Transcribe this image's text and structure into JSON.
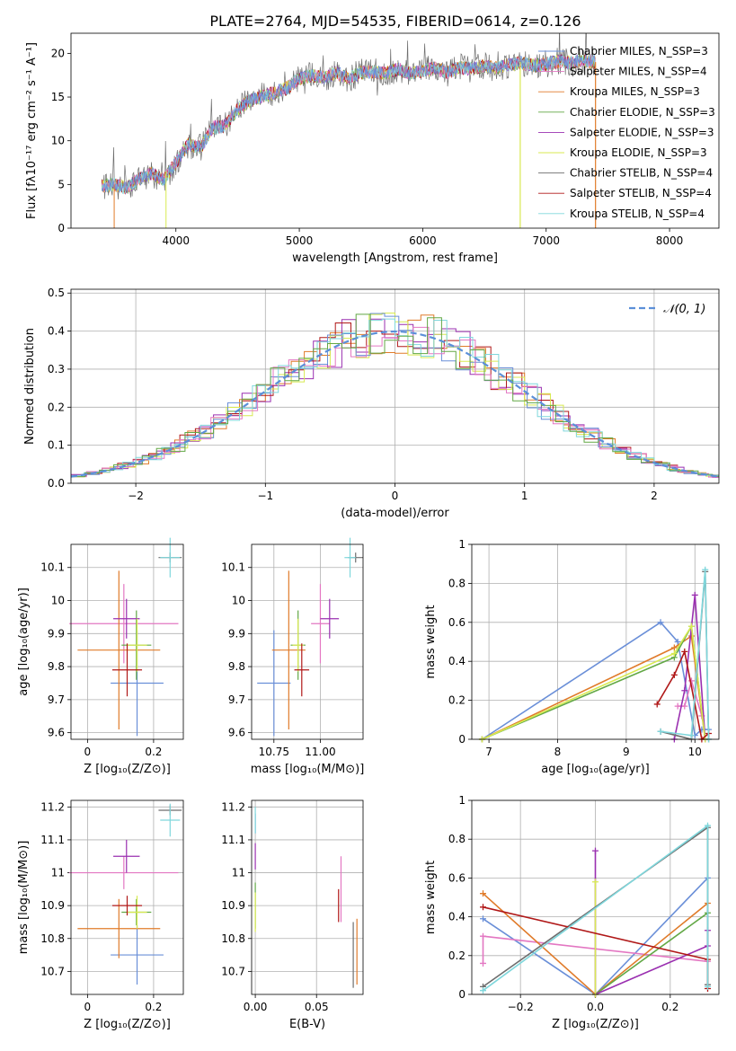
{
  "figure_title": "PLATE=2764, MJD=54535, FIBERID=0614, z=0.126",
  "colors": {
    "chabrier_miles": "#6a8fd8",
    "salpeter_miles": "#e377c2",
    "kroupa_miles": "#e07b2a",
    "chabrier_elodie": "#62a845",
    "salpeter_elodie": "#9a2fb0",
    "kroupa_elodie": "#d8ea52",
    "chabrier_stelib": "#6e6e6e",
    "salpeter_stelib": "#b01818",
    "kroupa_stelib": "#7fd7dc",
    "gaussian": "#5b8fd8",
    "grid": "#b0b0b0"
  },
  "chart_data": [
    {
      "id": "spectrum",
      "type": "line",
      "title": "PLATE=2764, MJD=54535, FIBERID=0614, z=0.126",
      "xlabel": "wavelength [Angstrom, rest frame]",
      "ylabel": "Flux [fλ10⁻¹⁷ erg cm⁻² s⁻¹ A⁻¹]",
      "xlim": [
        3150,
        8400
      ],
      "ylim": [
        0,
        22.3
      ],
      "xticks": [
        4000,
        5000,
        6000,
        7000,
        8000
      ],
      "yticks": [
        0,
        5,
        10,
        15,
        20
      ],
      "grid": false,
      "legend_position": "upper right",
      "legend": [
        "Chabrier MILES, N_SSP=3",
        "Salpeter MILES, N_SSP=4",
        "Kroupa MILES, N_SSP=3",
        "Chabrier ELODIE, N_SSP=3",
        "Salpeter ELODIE, N_SSP=3",
        "Kroupa ELODIE, N_SSP=3",
        "Chabrier STELIB, N_SSP=4",
        "Salpeter STELIB, N_SSP=4",
        "Kroupa STELIB, N_SSP=4"
      ],
      "continuum": {
        "x": [
          3400,
          3500,
          3600,
          3700,
          3800,
          3900,
          4000,
          4100,
          4200,
          4300,
          4400,
          4500,
          4600,
          4700,
          4800,
          4900,
          5000,
          5100,
          5200,
          5300,
          5400,
          5500,
          5600,
          5700,
          5800,
          5900,
          6000,
          6100,
          6200,
          6300,
          6400,
          6500,
          6600,
          6700,
          6800,
          6900,
          7000,
          7100,
          7200,
          7300,
          7400
        ],
        "y": [
          4.8,
          5.0,
          4.6,
          5.6,
          6.3,
          5.5,
          7.5,
          9.6,
          9.2,
          11.5,
          11.7,
          13.6,
          14.6,
          15.1,
          15.5,
          16.0,
          17.1,
          17.5,
          17.2,
          17.8,
          17.1,
          17.8,
          17.9,
          17.7,
          18.2,
          17.7,
          18.0,
          18.3,
          17.8,
          18.4,
          18.2,
          18.6,
          18.3,
          18.7,
          18.9,
          18.6,
          18.8,
          19.1,
          18.9,
          19.2,
          19.0
        ]
      }
    },
    {
      "id": "residuals",
      "type": "line",
      "xlabel": "(data-model)/error",
      "ylabel": "Normed distribution",
      "xlim": [
        -2.5,
        2.5
      ],
      "ylim": [
        0,
        0.51
      ],
      "xticks": [
        -2,
        -1,
        0,
        1,
        2
      ],
      "yticks": [
        0.0,
        0.1,
        0.2,
        0.3,
        0.4,
        0.5
      ],
      "grid": true,
      "legend_position": "upper right",
      "legend": [
        "𝒩(0, 1)"
      ],
      "series": [
        {
          "name": "𝒩(0, 1)",
          "kind": "gaussian",
          "mean": 0,
          "sigma": 1
        }
      ]
    },
    {
      "id": "age_vs_Z",
      "type": "scatter",
      "xlabel": "Z [log₁₀(Z/Z⊙)]",
      "ylabel": "age [log₁₀(age/yr)]",
      "xlim": [
        -0.05,
        0.29
      ],
      "ylim": [
        9.58,
        10.17
      ],
      "xticks": [
        0.0,
        0.2
      ],
      "yticks": [
        9.6,
        9.7,
        9.8,
        9.9,
        10.0,
        10.1
      ],
      "grid": true,
      "points": [
        {
          "model": "chabrier_miles",
          "x": 0.15,
          "y": 9.75,
          "xerr": 0.08,
          "yerr": 0.16
        },
        {
          "model": "salpeter_miles",
          "x": 0.11,
          "y": 9.93,
          "xerr": 0.165,
          "yerr": 0.12
        },
        {
          "model": "kroupa_miles",
          "x": 0.095,
          "y": 9.85,
          "xerr": 0.125,
          "yerr": 0.24
        },
        {
          "model": "chabrier_elodie",
          "x": 0.148,
          "y": 9.865,
          "xerr": 0.045,
          "yerr": 0.105
        },
        {
          "model": "salpeter_elodie",
          "x": 0.118,
          "y": 9.945,
          "xerr": 0.04,
          "yerr": 0.06
        },
        {
          "model": "kroupa_elodie",
          "x": 0.15,
          "y": 9.865,
          "xerr": 0.03,
          "yerr": 0.08
        },
        {
          "model": "chabrier_stelib",
          "x": 0.25,
          "y": 10.13,
          "xerr": 0.035,
          "yerr": 0.015
        },
        {
          "model": "salpeter_stelib",
          "x": 0.12,
          "y": 9.79,
          "xerr": 0.045,
          "yerr": 0.08
        },
        {
          "model": "kroupa_stelib",
          "x": 0.25,
          "y": 10.13,
          "xerr": 0.03,
          "yerr": 0.06
        }
      ]
    },
    {
      "id": "age_vs_mass",
      "type": "scatter",
      "xlabel": "mass [log₁₀(M/M⊙)]",
      "ylabel": "",
      "xlim": [
        10.63,
        11.23
      ],
      "ylim": [
        9.58,
        10.17
      ],
      "xticks": [
        10.75,
        11.0
      ],
      "xticklabels": [
        "10.75",
        "11.00"
      ],
      "yticks": [
        9.6,
        9.7,
        9.8,
        9.9,
        10.0,
        10.1
      ],
      "grid": true,
      "points": [
        {
          "model": "chabrier_miles",
          "x": 10.75,
          "y": 9.75,
          "xerr": 0.09,
          "yerr": 0.16
        },
        {
          "model": "salpeter_miles",
          "x": 11.0,
          "y": 9.93,
          "xerr": 0.05,
          "yerr": 0.12
        },
        {
          "model": "kroupa_miles",
          "x": 10.83,
          "y": 9.85,
          "xerr": 0.09,
          "yerr": 0.24
        },
        {
          "model": "chabrier_elodie",
          "x": 10.88,
          "y": 9.865,
          "xerr": 0.04,
          "yerr": 0.105
        },
        {
          "model": "salpeter_elodie",
          "x": 11.05,
          "y": 9.945,
          "xerr": 0.05,
          "yerr": 0.06
        },
        {
          "model": "kroupa_elodie",
          "x": 10.88,
          "y": 9.865,
          "xerr": 0.03,
          "yerr": 0.08
        },
        {
          "model": "chabrier_stelib",
          "x": 11.19,
          "y": 10.13,
          "xerr": 0.04,
          "yerr": 0.015
        },
        {
          "model": "salpeter_stelib",
          "x": 10.9,
          "y": 9.79,
          "xerr": 0.04,
          "yerr": 0.08
        },
        {
          "model": "kroupa_stelib",
          "x": 11.16,
          "y": 10.13,
          "xerr": 0.03,
          "yerr": 0.06
        }
      ]
    },
    {
      "id": "weight_vs_age",
      "type": "line",
      "xlabel": "age [log₁₀(age/yr)]",
      "ylabel": "mass weight",
      "xlim": [
        6.75,
        10.35
      ],
      "ylim": [
        0.0,
        1.0
      ],
      "xticks": [
        7,
        8,
        9,
        10
      ],
      "yticks": [
        0.0,
        0.2,
        0.4,
        0.6,
        0.8,
        1.0
      ],
      "grid": true,
      "series": [
        {
          "model": "chabrier_miles",
          "x": [
            6.9,
            9.5,
            9.75,
            10.0,
            10.1,
            10.2
          ],
          "y": [
            0.0,
            0.6,
            0.5,
            0.02,
            0.05,
            0.05
          ]
        },
        {
          "model": "salpeter_miles",
          "x": [
            9.75,
            9.85,
            9.95,
            10.1
          ],
          "y": [
            0.17,
            0.17,
            0.3,
            0.12
          ]
        },
        {
          "model": "kroupa_miles",
          "x": [
            6.9,
            9.7,
            9.95,
            10.15
          ],
          "y": [
            0.0,
            0.47,
            0.53,
            0.0
          ]
        },
        {
          "model": "chabrier_elodie",
          "x": [
            6.9,
            9.7,
            9.95,
            10.15
          ],
          "y": [
            0.0,
            0.42,
            0.58,
            0.0
          ]
        },
        {
          "model": "salpeter_elodie",
          "x": [
            9.7,
            9.85,
            10.0,
            10.15
          ],
          "y": [
            0.0,
            0.25,
            0.74,
            0.0
          ]
        },
        {
          "model": "kroupa_elodie",
          "x": [
            6.9,
            9.7,
            9.95,
            10.15
          ],
          "y": [
            0.0,
            0.44,
            0.58,
            0.0
          ]
        },
        {
          "model": "chabrier_stelib",
          "x": [
            9.5,
            9.95,
            10.15,
            10.2
          ],
          "y": [
            0.04,
            0.0,
            0.86,
            0.0
          ]
        },
        {
          "model": "salpeter_stelib",
          "x": [
            9.45,
            9.7,
            9.85,
            10.1,
            10.2
          ],
          "y": [
            0.18,
            0.33,
            0.45,
            0.0,
            0.03
          ]
        },
        {
          "model": "kroupa_stelib",
          "x": [
            9.5,
            9.95,
            10.15,
            10.2
          ],
          "y": [
            0.04,
            0.02,
            0.87,
            0.0
          ]
        }
      ]
    },
    {
      "id": "mass_vs_Z",
      "type": "scatter",
      "xlabel": "Z [log₁₀(Z/Z⊙)]",
      "ylabel": "mass [log₁₀(M/M⊙)]",
      "xlim": [
        -0.05,
        0.29
      ],
      "ylim": [
        10.63,
        11.22
      ],
      "xticks": [
        0.0,
        0.2
      ],
      "yticks": [
        10.7,
        10.8,
        10.9,
        11.0,
        11.1,
        11.2
      ],
      "grid": true,
      "points": [
        {
          "model": "chabrier_miles",
          "x": 0.15,
          "y": 10.75,
          "xerr": 0.08,
          "yerr": 0.09
        },
        {
          "model": "salpeter_miles",
          "x": 0.11,
          "y": 11.0,
          "xerr": 0.165,
          "yerr": 0.05
        },
        {
          "model": "kroupa_miles",
          "x": 0.095,
          "y": 10.83,
          "xerr": 0.125,
          "yerr": 0.09
        },
        {
          "model": "chabrier_elodie",
          "x": 0.148,
          "y": 10.88,
          "xerr": 0.045,
          "yerr": 0.04
        },
        {
          "model": "salpeter_elodie",
          "x": 0.118,
          "y": 11.05,
          "xerr": 0.04,
          "yerr": 0.05
        },
        {
          "model": "kroupa_elodie",
          "x": 0.15,
          "y": 10.88,
          "xerr": 0.03,
          "yerr": 0.05
        },
        {
          "model": "chabrier_stelib",
          "x": 0.25,
          "y": 11.19,
          "xerr": 0.035,
          "yerr": 0.015
        },
        {
          "model": "salpeter_stelib",
          "x": 0.12,
          "y": 10.9,
          "xerr": 0.045,
          "yerr": 0.03
        },
        {
          "model": "kroupa_stelib",
          "x": 0.25,
          "y": 11.16,
          "xerr": 0.03,
          "yerr": 0.05
        }
      ]
    },
    {
      "id": "mass_vs_EBV",
      "type": "scatter",
      "xlabel": "E(B-V)",
      "ylabel": "",
      "xlim": [
        -0.003,
        0.088
      ],
      "ylim": [
        10.63,
        11.22
      ],
      "xticks": [
        0.0,
        0.05
      ],
      "xticklabels": [
        "0.00",
        "0.05"
      ],
      "yticks": [
        10.7,
        10.8,
        10.9,
        11.0,
        11.1,
        11.2
      ],
      "grid": true,
      "points": [
        {
          "model": "chabrier_miles",
          "x": 0.0,
          "y": 11.15,
          "xerr": 0,
          "yerr": 0.03
        },
        {
          "model": "salpeter_miles",
          "x": 0.07,
          "y": 10.95,
          "xerr": 0,
          "yerr": 0.1
        },
        {
          "model": "kroupa_miles",
          "x": 0.083,
          "y": 10.76,
          "xerr": 0,
          "yerr": 0.1
        },
        {
          "model": "chabrier_elodie",
          "x": 0.0,
          "y": 10.9,
          "xerr": 0,
          "yerr": 0.07
        },
        {
          "model": "salpeter_elodie",
          "x": 0.0,
          "y": 11.05,
          "xerr": 0,
          "yerr": 0.04
        },
        {
          "model": "kroupa_elodie",
          "x": 0.0,
          "y": 10.88,
          "xerr": 0,
          "yerr": 0.06
        },
        {
          "model": "chabrier_stelib",
          "x": 0.08,
          "y": 10.75,
          "xerr": 0,
          "yerr": 0.1
        },
        {
          "model": "salpeter_stelib",
          "x": 0.068,
          "y": 10.9,
          "xerr": 0,
          "yerr": 0.05
        },
        {
          "model": "kroupa_stelib",
          "x": 0.0,
          "y": 11.16,
          "xerr": 0,
          "yerr": 0.04
        }
      ]
    },
    {
      "id": "weight_vs_Z",
      "type": "line",
      "xlabel": "Z [log₁₀(Z/Z⊙)]",
      "ylabel": "mass weight",
      "xlim": [
        -0.33,
        0.33
      ],
      "ylim": [
        0.0,
        1.0
      ],
      "xticks": [
        -0.2,
        0.0,
        0.2
      ],
      "xticklabels": [
        "−0.2",
        "0.0",
        "0.2"
      ],
      "yticks": [
        0.0,
        0.2,
        0.4,
        0.6,
        0.8,
        1.0
      ],
      "grid": true,
      "series": [
        {
          "model": "chabrier_miles",
          "x": [
            -0.3,
            0.0,
            0.3
          ],
          "y": [
            0.39,
            0.0,
            0.6
          ]
        },
        {
          "model": "salpeter_miles",
          "x": [
            -0.3,
            -0.3,
            0.3
          ],
          "y": [
            0.16,
            0.3,
            0.17
          ]
        },
        {
          "model": "kroupa_miles",
          "x": [
            -0.3,
            0.0,
            0.3
          ],
          "y": [
            0.52,
            0.0,
            0.47
          ]
        },
        {
          "model": "chabrier_elodie",
          "x": [
            0.0,
            0.3
          ],
          "y": [
            0.0,
            0.42
          ]
        },
        {
          "model": "salpeter_elodie",
          "x": [
            0.0,
            0.0,
            0.3,
            0.3
          ],
          "y": [
            0.74,
            0.0,
            0.25,
            0.33
          ]
        },
        {
          "model": "kroupa_elodie",
          "x": [
            0.0,
            0.0
          ],
          "y": [
            0.58,
            0.0
          ]
        },
        {
          "model": "chabrier_stelib",
          "x": [
            -0.3,
            0.3,
            0.3
          ],
          "y": [
            0.04,
            0.86,
            0.05
          ]
        },
        {
          "model": "salpeter_stelib",
          "x": [
            -0.3,
            0.3,
            0.3
          ],
          "y": [
            0.45,
            0.18,
            0.03
          ]
        },
        {
          "model": "kroupa_stelib",
          "x": [
            -0.3,
            0.3,
            0.3
          ],
          "y": [
            0.02,
            0.87,
            0.04
          ]
        }
      ]
    }
  ]
}
